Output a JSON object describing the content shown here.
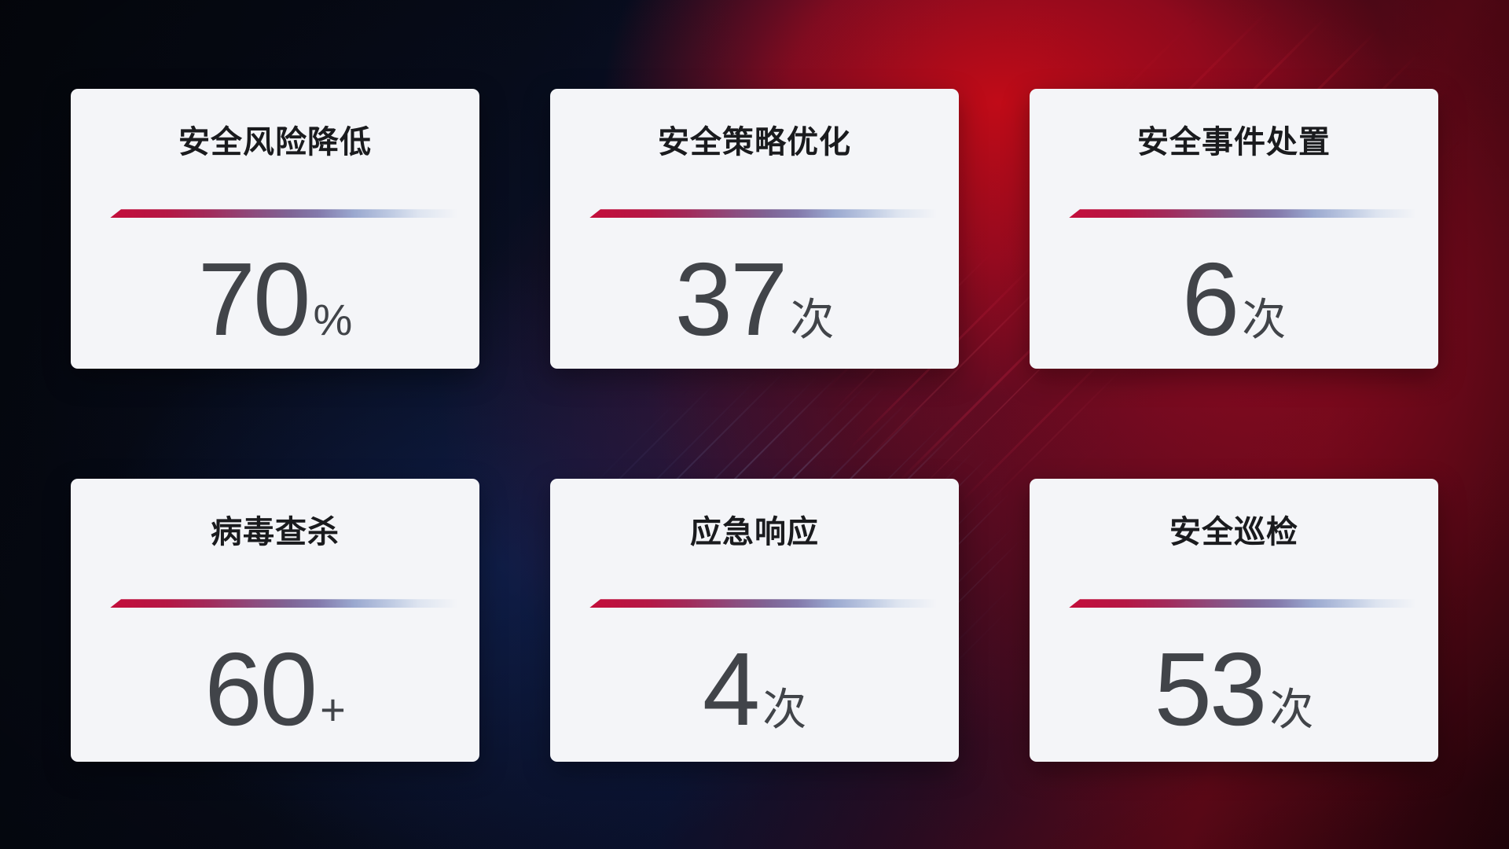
{
  "screen": {
    "kind": "security-operations-kpi-dashboard",
    "language": "zh-CN"
  },
  "colors": {
    "accent_red": "#c30e3b",
    "accent_light_blue": "#bdc9e2",
    "card_background": "#f4f5f8",
    "title_text": "#1a1b1e",
    "value_text": "#414449",
    "background_navy": "#0a102a",
    "background_red": "#a50d20"
  },
  "cards": [
    {
      "title": "安全风险降低",
      "value": "70",
      "unit": "%"
    },
    {
      "title": "安全策略优化",
      "value": "37",
      "unit": "次"
    },
    {
      "title": "安全事件处置",
      "value": "6",
      "unit": "次"
    },
    {
      "title": "病毒查杀",
      "value": "60",
      "unit": "+"
    },
    {
      "title": "应急响应",
      "value": "4",
      "unit": "次"
    },
    {
      "title": "安全巡检",
      "value": "53",
      "unit": "次"
    }
  ]
}
